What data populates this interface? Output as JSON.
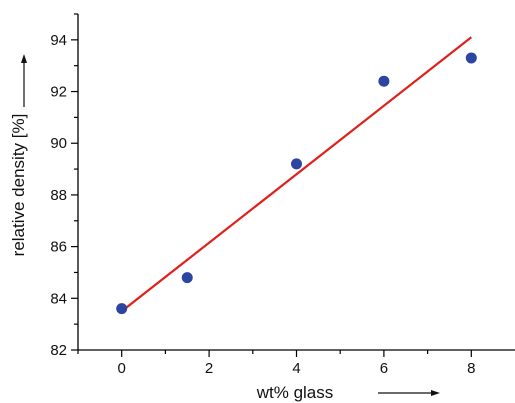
{
  "chart_data": {
    "type": "scatter",
    "xlabel": "wt% glass",
    "ylabel": "relative density [%]",
    "xlim": [
      -1,
      9
    ],
    "ylim": [
      82,
      95
    ],
    "xticks": [
      0,
      2,
      4,
      6,
      8
    ],
    "yticks": [
      82,
      84,
      86,
      88,
      90,
      92,
      94
    ],
    "x_minor_step": 1,
    "y_minor_step": 1,
    "grid": false,
    "series": [
      {
        "kind": "points",
        "color": "#2b45a0",
        "x": [
          0,
          1.5,
          4,
          6,
          8
        ],
        "y": [
          83.6,
          84.8,
          89.2,
          92.4,
          93.3
        ]
      },
      {
        "kind": "fit-line",
        "color": "#e0201b",
        "x": [
          0,
          8
        ],
        "y": [
          83.5,
          94.1
        ]
      }
    ]
  }
}
